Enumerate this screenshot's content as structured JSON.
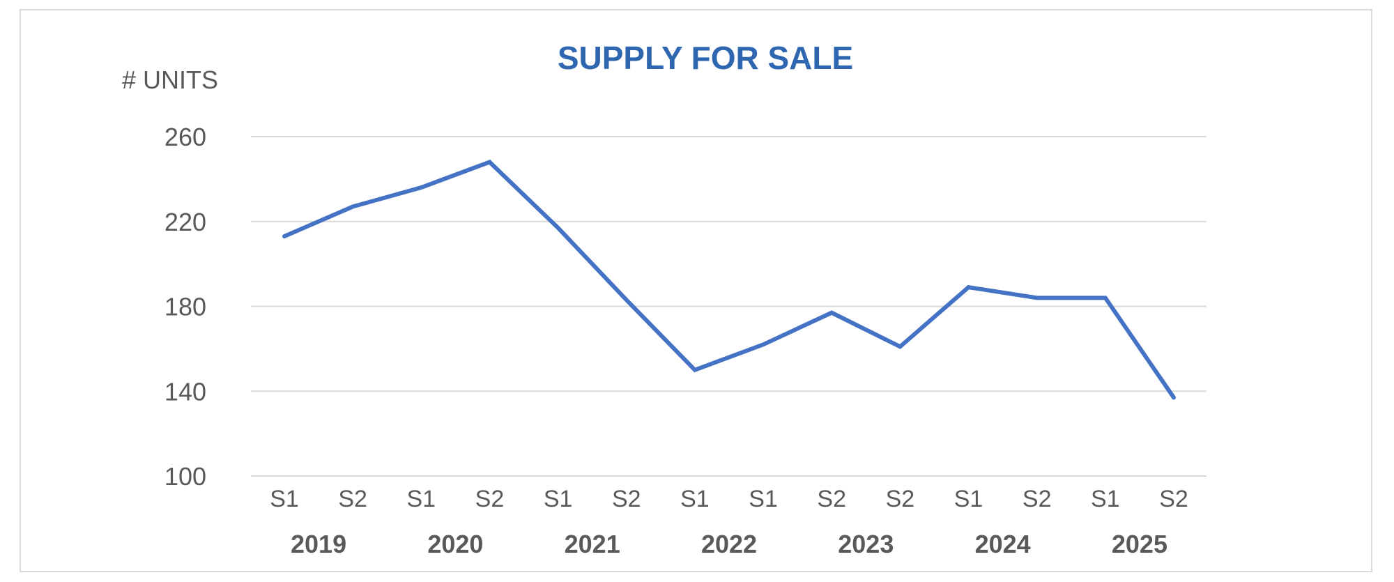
{
  "chart_data": {
    "type": "line",
    "title": "SUPPLY FOR SALE",
    "ylabel": "# UNITS",
    "xlabel": "",
    "ylim": [
      100,
      260
    ],
    "yticks": [
      100,
      140,
      180,
      220,
      260
    ],
    "grid": true,
    "categories": [
      "S1",
      "S2",
      "S1",
      "S2",
      "S1",
      "S2",
      "S1",
      "S1",
      "S2",
      "S2",
      "S1",
      "S2",
      "S1",
      "S2"
    ],
    "year_groups": [
      "2019",
      "2020",
      "2021",
      "2022",
      "2023",
      "2024",
      "2025"
    ],
    "series": [
      {
        "values": [
          213,
          227,
          236,
          248,
          217,
          183,
          150,
          162,
          177,
          161,
          189,
          184,
          184,
          137
        ]
      }
    ],
    "colors": {
      "line": "#4472c4",
      "title": "#2e66b0",
      "text": "#595959",
      "grid": "#d9d9d9"
    }
  }
}
